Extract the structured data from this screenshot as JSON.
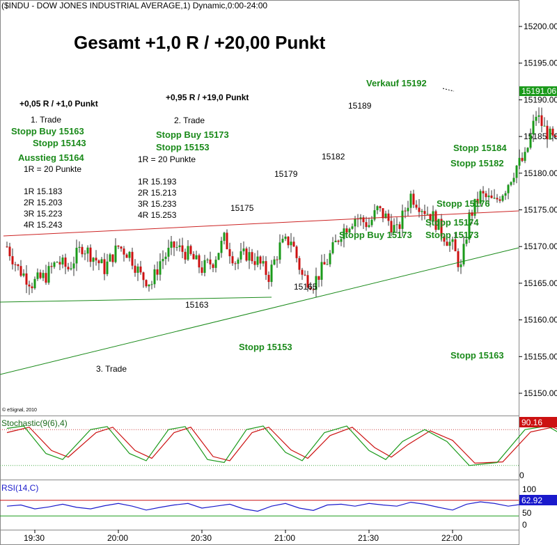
{
  "header": "($INDU - DOW JONES INDUSTRIAL AVERAGE,1) Dynamic,0:00-24:00",
  "title": "Gesamt +1,0 R / +20,00 Punkt",
  "copyright": "© eSignal, 2010",
  "price_label": "15191.06",
  "trade1": {
    "result": "+0,05 R / +1,0 Punkt",
    "name": "1. Trade",
    "stop_buy": "Stopp Buy 15163",
    "stop": "Stopp 15143",
    "exit": "Ausstieg 15164",
    "r_def": "1R = 20 Punkte",
    "targets": [
      "1R 15.183",
      "2R 15.203",
      "3R 15.223",
      "4R 15.243"
    ]
  },
  "trade2": {
    "result": "+0,95 R / +19,0 Punkt",
    "name": "2. Trade",
    "stop_buy": "Stopp Buy 15173",
    "stop": "Stopp 15153",
    "r_def": "1R = 20 Punkte",
    "targets": [
      "1R 15.193",
      "2R 15.213",
      "3R 15.233",
      "4R 15.253"
    ]
  },
  "trade3": {
    "name": "3. Trade"
  },
  "annotations": {
    "sell": "Verkauf 15192",
    "stop_15184": "Stopp 15184",
    "stop_15182": "Stopp 15182",
    "stop_15176": "Stopp 15176",
    "stop_15174": "Stopp 15174",
    "stop_15173": "Stopp 15173",
    "stop_buy_15173": "Stopp Buy 15173",
    "stop_15153": "Stopp 15153",
    "stop_15163": "Stopp 15163"
  },
  "point_labels": {
    "p15175": "15175",
    "p15179": "15179",
    "p15182": "15182",
    "p15189": "15189",
    "p15165": "15165",
    "p15163": "15163"
  },
  "stochastic": {
    "label": "Stochastic(9(6),4)",
    "value": "90.16",
    "ticks": [
      "100",
      "0"
    ]
  },
  "rsi": {
    "label": "RSI(14,C)",
    "value": "62.92",
    "ticks": [
      "100",
      "50",
      "0"
    ]
  },
  "colors": {
    "up": "#1a9a1a",
    "down": "#cc1111",
    "annotation": "#1a8a1a",
    "resistance": "#cc2222",
    "support": "#1a8a1a",
    "rsi": "#1a1acc"
  },
  "chart_data": {
    "type": "candlestick",
    "x_ticks": [
      "19:30",
      "20:00",
      "20:30",
      "21:00",
      "21:30",
      "22:00"
    ],
    "y_ticks": [
      15150,
      15155,
      15160,
      15165,
      15170,
      15175,
      15180,
      15185,
      15190,
      15195,
      15200
    ],
    "ylim": [
      15146.5,
      15203.5
    ],
    "time_range": [
      "19:20",
      "22:05"
    ],
    "close_path": [
      [
        0,
        15170
      ],
      [
        4,
        15167
      ],
      [
        9,
        15165
      ],
      [
        14,
        15166
      ],
      [
        18,
        15168
      ],
      [
        22,
        15167
      ],
      [
        27,
        15170
      ],
      [
        30,
        15169
      ],
      [
        35,
        15167
      ],
      [
        40,
        15170
      ],
      [
        44,
        15169
      ],
      [
        48,
        15166
      ],
      [
        52,
        15165
      ],
      [
        55,
        15168
      ],
      [
        60,
        15170
      ],
      [
        65,
        15169
      ],
      [
        70,
        15167
      ],
      [
        74,
        15168
      ],
      [
        78,
        15171
      ],
      [
        82,
        15168
      ],
      [
        86,
        15169
      ],
      [
        90,
        15168
      ],
      [
        94,
        15166
      ],
      [
        98,
        15170
      ],
      [
        102,
        15171
      ],
      [
        106,
        15166
      ],
      [
        110,
        15165
      ],
      [
        115,
        15168
      ],
      [
        120,
        15172
      ],
      [
        125,
        15174
      ],
      [
        130,
        15173
      ],
      [
        133,
        15175
      ],
      [
        136,
        15174
      ],
      [
        140,
        15172
      ],
      [
        145,
        15177
      ],
      [
        150,
        15175
      ],
      [
        153,
        15174
      ],
      [
        156,
        15172
      ],
      [
        160,
        15170
      ],
      [
        163,
        15167
      ],
      [
        166,
        15174
      ],
      [
        170,
        15177
      ],
      [
        175,
        15176
      ],
      [
        179,
        15178
      ],
      [
        183,
        15181
      ],
      [
        186,
        15182
      ],
      [
        190,
        15188
      ],
      [
        193,
        15186
      ],
      [
        197,
        15184
      ],
      [
        200,
        15185
      ],
      [
        204,
        15175
      ],
      [
        208,
        15180
      ],
      [
        212,
        15181
      ],
      [
        216,
        15176
      ],
      [
        220,
        15175
      ],
      [
        223,
        15180
      ],
      [
        226,
        15185
      ],
      [
        228,
        15192
      ],
      [
        231,
        15191
      ],
      [
        234,
        15190.5
      ]
    ],
    "stoch_k": [
      [
        0,
        82
      ],
      [
        6,
        86
      ],
      [
        14,
        40
      ],
      [
        20,
        30
      ],
      [
        30,
        80
      ],
      [
        36,
        85
      ],
      [
        44,
        40
      ],
      [
        50,
        28
      ],
      [
        58,
        80
      ],
      [
        64,
        85
      ],
      [
        72,
        30
      ],
      [
        78,
        25
      ],
      [
        86,
        80
      ],
      [
        92,
        86
      ],
      [
        100,
        42
      ],
      [
        106,
        28
      ],
      [
        114,
        75
      ],
      [
        122,
        86
      ],
      [
        130,
        45
      ],
      [
        136,
        30
      ],
      [
        142,
        60
      ],
      [
        150,
        80
      ],
      [
        158,
        60
      ],
      [
        166,
        20
      ],
      [
        176,
        25
      ],
      [
        186,
        80
      ],
      [
        194,
        86
      ],
      [
        200,
        70
      ],
      [
        206,
        86
      ],
      [
        214,
        50
      ],
      [
        220,
        25
      ],
      [
        226,
        45
      ],
      [
        232,
        90
      ]
    ],
    "stoch_d": [
      [
        0,
        75
      ],
      [
        8,
        84
      ],
      [
        16,
        45
      ],
      [
        22,
        34
      ],
      [
        32,
        75
      ],
      [
        38,
        84
      ],
      [
        46,
        45
      ],
      [
        52,
        32
      ],
      [
        60,
        75
      ],
      [
        66,
        84
      ],
      [
        74,
        35
      ],
      [
        80,
        28
      ],
      [
        88,
        75
      ],
      [
        94,
        84
      ],
      [
        102,
        46
      ],
      [
        108,
        32
      ],
      [
        116,
        70
      ],
      [
        124,
        84
      ],
      [
        132,
        50
      ],
      [
        138,
        34
      ],
      [
        144,
        55
      ],
      [
        152,
        78
      ],
      [
        160,
        62
      ],
      [
        168,
        24
      ],
      [
        178,
        26
      ],
      [
        188,
        76
      ],
      [
        196,
        84
      ],
      [
        202,
        72
      ],
      [
        208,
        84
      ],
      [
        216,
        54
      ],
      [
        222,
        28
      ],
      [
        228,
        42
      ],
      [
        234,
        88
      ]
    ],
    "rsi_values": [
      [
        0,
        55
      ],
      [
        5,
        58
      ],
      [
        10,
        48
      ],
      [
        15,
        53
      ],
      [
        20,
        60
      ],
      [
        25,
        52
      ],
      [
        30,
        48
      ],
      [
        35,
        56
      ],
      [
        40,
        62
      ],
      [
        45,
        55
      ],
      [
        50,
        45
      ],
      [
        55,
        52
      ],
      [
        60,
        58
      ],
      [
        65,
        62
      ],
      [
        70,
        50
      ],
      [
        75,
        55
      ],
      [
        80,
        60
      ],
      [
        85,
        48
      ],
      [
        90,
        42
      ],
      [
        95,
        55
      ],
      [
        100,
        62
      ],
      [
        105,
        50
      ],
      [
        110,
        44
      ],
      [
        115,
        58
      ],
      [
        120,
        60
      ],
      [
        125,
        55
      ],
      [
        130,
        62
      ],
      [
        135,
        58
      ],
      [
        140,
        55
      ],
      [
        145,
        65
      ],
      [
        150,
        60
      ],
      [
        155,
        52
      ],
      [
        160,
        45
      ],
      [
        165,
        60
      ],
      [
        170,
        66
      ],
      [
        175,
        62
      ],
      [
        180,
        55
      ],
      [
        185,
        60
      ],
      [
        190,
        68
      ],
      [
        195,
        62
      ],
      [
        200,
        58
      ],
      [
        205,
        48
      ],
      [
        210,
        62
      ],
      [
        215,
        55
      ],
      [
        220,
        50
      ],
      [
        225,
        60
      ],
      [
        230,
        65
      ],
      [
        234,
        63
      ]
    ],
    "rsi_levels": [
      70,
      30
    ]
  }
}
